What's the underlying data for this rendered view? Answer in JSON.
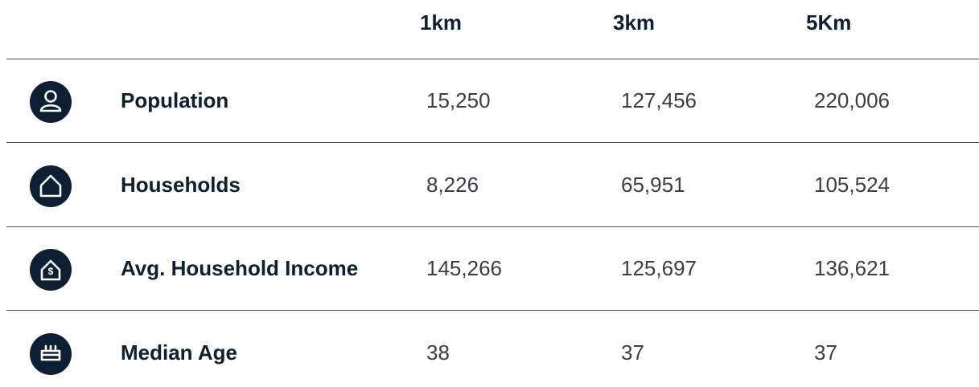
{
  "table": {
    "columns": [
      "1km",
      "3km",
      "5Km"
    ],
    "rows": [
      {
        "label": "Population",
        "values": [
          "15,250",
          "127,456",
          "220,006"
        ]
      },
      {
        "label": "Households",
        "values": [
          "8,226",
          "65,951",
          "105,524"
        ]
      },
      {
        "label": "Avg. Household Income",
        "values": [
          "145,266",
          "125,697",
          "136,621"
        ]
      },
      {
        "label": "Median Age",
        "values": [
          "38",
          "37",
          "37"
        ]
      }
    ]
  }
}
